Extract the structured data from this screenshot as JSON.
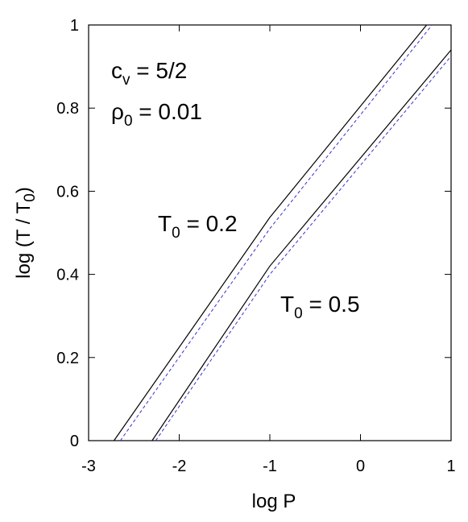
{
  "chart_data": {
    "type": "line",
    "title": "",
    "xlabel": {
      "base": "log P",
      "sub": ""
    },
    "ylabel": {
      "pre": "log (T / T",
      "sub": "0",
      "post": ")"
    },
    "xlim": [
      -3,
      1
    ],
    "ylim": [
      0,
      1
    ],
    "xticks": [
      -3,
      -2,
      -1,
      0,
      1
    ],
    "yticks": [
      0,
      0.2,
      0.4,
      0.6,
      0.8,
      1
    ],
    "xtick_labels": [
      "-3",
      "-2",
      "-1",
      "0",
      "1"
    ],
    "ytick_labels": [
      "0",
      "0.2",
      "0.4",
      "0.6",
      "0.8",
      "1"
    ],
    "grid": false,
    "series": [
      {
        "style": "solid",
        "color": "#000000",
        "x": [
          -2.72,
          -1.0,
          0.73
        ],
        "y": [
          0.0,
          0.537,
          1.0
        ]
      },
      {
        "style": "dashed",
        "color": "#3333cc",
        "x": [
          -2.65,
          -1.0,
          0.79
        ],
        "y": [
          0.0,
          0.51,
          1.0
        ]
      },
      {
        "style": "solid",
        "color": "#000000",
        "x": [
          -2.3,
          -1.0,
          1.0
        ],
        "y": [
          0.0,
          0.42,
          0.94
        ]
      },
      {
        "style": "dashed",
        "color": "#3333cc",
        "x": [
          -2.26,
          -1.0,
          1.0
        ],
        "y": [
          0.0,
          0.4,
          0.925
        ]
      }
    ],
    "annotations": [
      {
        "id": "cv",
        "base": "c",
        "sub": "v",
        "rest": " = 5/2"
      },
      {
        "id": "rho",
        "base": "ρ",
        "sub": "0",
        "rest": " = 0.01"
      },
      {
        "id": "t02",
        "base": "T",
        "sub": "0",
        "rest": " = 0.2"
      },
      {
        "id": "t05",
        "base": "T",
        "sub": "0",
        "rest": " = 0.5"
      }
    ]
  }
}
